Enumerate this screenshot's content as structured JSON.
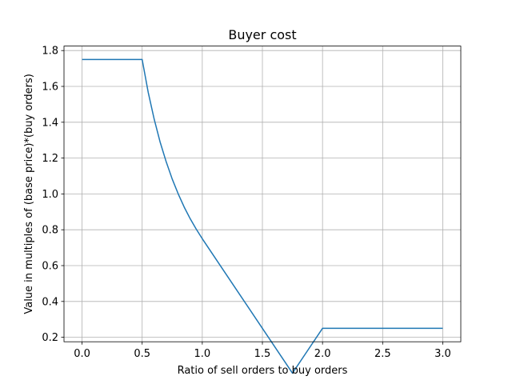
{
  "chart_data": {
    "type": "line",
    "title": "Buyer cost",
    "xlabel": "Ratio of sell orders to buy orders",
    "ylabel": "Value in multiples of (base price)*(buy orders)",
    "xlim": [
      -0.15,
      3.15
    ],
    "ylim": [
      0.175,
      1.825
    ],
    "xticks": [
      0.0,
      0.5,
      1.0,
      1.5,
      2.0,
      2.5,
      3.0
    ],
    "xtick_labels": [
      "0.0",
      "0.5",
      "1.0",
      "1.5",
      "2.0",
      "2.5",
      "3.0"
    ],
    "yticks": [
      0.2,
      0.4,
      0.6,
      0.8,
      1.0,
      1.2,
      1.4,
      1.6,
      1.8
    ],
    "ytick_labels": [
      "0.2",
      "0.4",
      "0.6",
      "0.8",
      "1.0",
      "1.2",
      "1.4",
      "1.6",
      "1.8"
    ],
    "grid": true,
    "series": [
      {
        "color": "#1f77b4",
        "x": [
          0.0,
          0.5,
          0.55,
          0.6,
          0.65,
          0.7,
          0.75,
          0.8,
          0.85,
          0.9,
          0.95,
          1.0,
          1.25,
          1.5,
          1.75,
          2.0,
          2.5,
          3.0
        ],
        "y": [
          1.75,
          1.75,
          1.568,
          1.417,
          1.288,
          1.179,
          1.083,
          1.0,
          0.926,
          0.861,
          0.803,
          0.75,
          0.5,
          0.25,
          0.0,
          0.25,
          0.25,
          0.25
        ]
      }
    ]
  }
}
